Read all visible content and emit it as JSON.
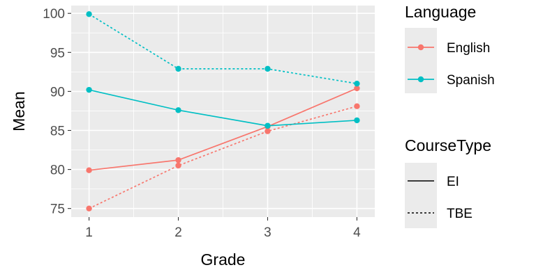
{
  "chart_data": {
    "type": "line",
    "xlabel": "Grade",
    "ylabel": "Mean",
    "x": [
      1,
      2,
      3,
      4
    ],
    "xlim": [
      0.8,
      4.2
    ],
    "ylim": [
      73.9,
      101.0
    ],
    "x_ticks": [
      "1",
      "2",
      "3",
      "4"
    ],
    "y_ticks": [
      75,
      80,
      85,
      90,
      95,
      100
    ],
    "grid": true,
    "legend_position": "right",
    "series": [
      {
        "language": "English",
        "course_type": "EI",
        "values": [
          79.9,
          81.2,
          85.5,
          90.4
        ],
        "color": "#F8766D",
        "dash": "solid"
      },
      {
        "language": "English",
        "course_type": "TBE",
        "values": [
          75.0,
          80.5,
          84.9,
          88.1
        ],
        "color": "#F8766D",
        "dash": "dotted"
      },
      {
        "language": "Spanish",
        "course_type": "EI",
        "values": [
          90.2,
          87.6,
          85.6,
          86.3
        ],
        "color": "#00BFC4",
        "dash": "solid"
      },
      {
        "language": "Spanish",
        "course_type": "TBE",
        "values": [
          99.9,
          92.9,
          92.9,
          91.0
        ],
        "color": "#00BFC4",
        "dash": "dotted"
      }
    ],
    "legends": [
      {
        "title": "Language",
        "kind": "color",
        "items": [
          {
            "label": "English",
            "color": "#F8766D"
          },
          {
            "label": "Spanish",
            "color": "#00BFC4"
          }
        ]
      },
      {
        "title": "CourseType",
        "kind": "linetype",
        "items": [
          {
            "label": "EI",
            "dash": "solid"
          },
          {
            "label": "TBE",
            "dash": "dotted"
          }
        ]
      }
    ],
    "panel_background": "#EBEBEB"
  }
}
